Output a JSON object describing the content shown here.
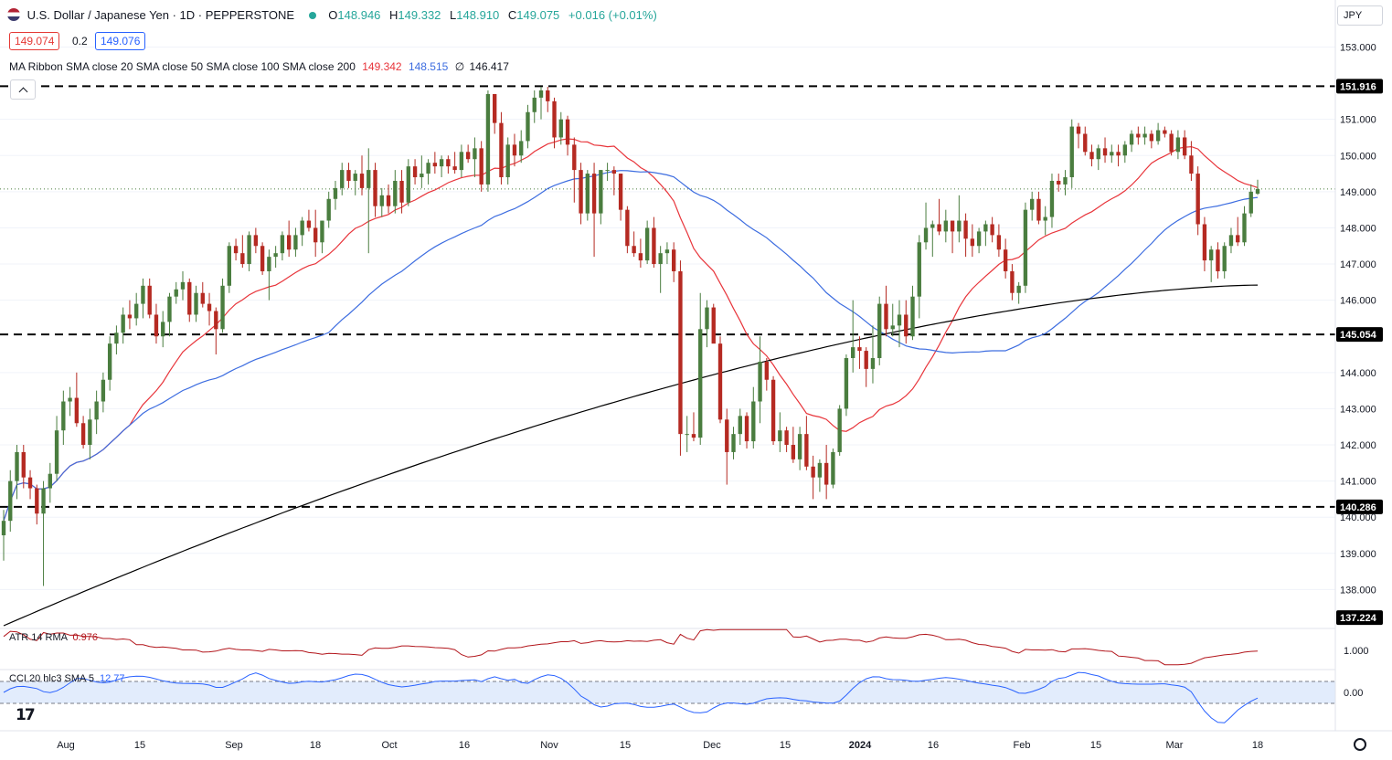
{
  "header": {
    "symbol_title": "U.S. Dollar / Japanese Yen · 1D · PEPPERSTONE",
    "ohlc": {
      "o_label": "O",
      "o": "148.946",
      "h_label": "H",
      "h": "149.332",
      "l_label": "L",
      "l": "148.910",
      "c_label": "C",
      "c": "149.075",
      "change": "+0.016 (+0.01%)"
    },
    "sell_price": "149.074",
    "spread": "0.2",
    "buy_price": "149.076",
    "ma_ribbon": {
      "label": "MA Ribbon SMA close 20 SMA close 50 SMA close 100 SMA close 200",
      "v20": "149.342",
      "v50": "148.515",
      "v100": "∅",
      "v200": "146.417"
    },
    "currency": "JPY"
  },
  "indicators": {
    "atr": {
      "label": "ATR 14 RMA",
      "value": "0.976",
      "axis": "1.000"
    },
    "cci": {
      "label": "CCI 20 hlc3 SMA 5",
      "value": "12.77",
      "axis": "0.00"
    }
  },
  "colors": {
    "up": "#4a7d3f",
    "down": "#b52a22",
    "sma20": "#e8353b",
    "sma50": "#3d6de0",
    "sma200": "#000000",
    "cci": "#2962ff",
    "atr": "#b2151b",
    "cci_band": "#d6e4fb"
  },
  "chart_data": {
    "type": "candlestick",
    "y_ticks": [
      "153.000",
      "151.000",
      "150.000",
      "149.000",
      "148.000",
      "147.000",
      "146.000",
      "144.000",
      "143.000",
      "142.000",
      "141.000",
      "140.000",
      "139.000",
      "138.000"
    ],
    "x_ticks": [
      "Aug",
      "15",
      "Sep",
      "18",
      "Oct",
      "16",
      "Nov",
      "15",
      "Dec",
      "15",
      "2024",
      "16",
      "Feb",
      "15",
      "Mar",
      "18"
    ],
    "ylim": [
      137.0,
      154.3
    ],
    "levels": [
      {
        "value": 151.916,
        "label": "151.916"
      },
      {
        "value": 145.054,
        "label": "145.054"
      },
      {
        "value": 140.286,
        "label": "140.286"
      },
      {
        "value": 137.224,
        "label": "137.224"
      }
    ],
    "candles": [
      [
        139.5,
        140.2,
        138.8,
        139.9
      ],
      [
        139.9,
        141.3,
        139.6,
        141.0
      ],
      [
        141.0,
        142.0,
        140.5,
        141.8
      ],
      [
        141.8,
        142.0,
        140.8,
        141.1
      ],
      [
        141.1,
        141.3,
        140.5,
        140.8
      ],
      [
        140.8,
        140.9,
        139.8,
        140.1
      ],
      [
        140.1,
        141.0,
        138.1,
        140.8
      ],
      [
        140.8,
        141.5,
        140.4,
        141.2
      ],
      [
        141.2,
        142.8,
        141.0,
        142.4
      ],
      [
        142.4,
        143.5,
        142.0,
        143.2
      ],
      [
        143.2,
        143.6,
        142.8,
        143.3
      ],
      [
        143.3,
        144.0,
        142.5,
        142.6
      ],
      [
        142.6,
        142.8,
        141.9,
        142.0
      ],
      [
        142.0,
        143.0,
        141.6,
        142.7
      ],
      [
        142.7,
        143.5,
        142.3,
        143.2
      ],
      [
        143.2,
        144.0,
        142.9,
        143.8
      ],
      [
        143.8,
        145.0,
        143.5,
        144.8
      ],
      [
        144.8,
        145.3,
        144.5,
        145.1
      ],
      [
        145.1,
        145.8,
        144.8,
        145.6
      ],
      [
        145.6,
        146.0,
        145.2,
        145.5
      ],
      [
        145.5,
        146.2,
        145.3,
        145.9
      ],
      [
        145.9,
        146.6,
        145.5,
        146.4
      ],
      [
        146.4,
        146.6,
        145.5,
        145.6
      ],
      [
        145.6,
        145.9,
        144.8,
        145.0
      ],
      [
        145.0,
        145.7,
        144.7,
        145.4
      ],
      [
        145.4,
        146.2,
        145.0,
        146.1
      ],
      [
        146.1,
        146.5,
        145.9,
        146.3
      ],
      [
        146.3,
        146.8,
        146.0,
        146.5
      ],
      [
        146.5,
        146.6,
        145.4,
        145.6
      ],
      [
        145.6,
        146.4,
        145.4,
        146.2
      ],
      [
        146.2,
        146.5,
        145.8,
        145.9
      ],
      [
        145.9,
        146.2,
        145.3,
        145.7
      ],
      [
        145.7,
        145.8,
        144.5,
        145.2
      ],
      [
        145.2,
        146.6,
        145.1,
        146.4
      ],
      [
        146.4,
        147.6,
        146.2,
        147.5
      ],
      [
        147.5,
        147.7,
        147.1,
        147.3
      ],
      [
        147.3,
        147.8,
        146.9,
        147.0
      ],
      [
        147.0,
        147.9,
        146.8,
        147.8
      ],
      [
        147.8,
        148.0,
        147.3,
        147.5
      ],
      [
        147.5,
        147.6,
        146.7,
        146.8
      ],
      [
        146.8,
        147.4,
        146.0,
        147.2
      ],
      [
        147.2,
        147.5,
        146.9,
        147.3
      ],
      [
        147.3,
        147.9,
        147.1,
        147.8
      ],
      [
        147.8,
        148.2,
        147.2,
        147.4
      ],
      [
        147.4,
        148.0,
        147.2,
        147.8
      ],
      [
        147.8,
        148.3,
        147.5,
        148.2
      ],
      [
        148.2,
        148.5,
        147.9,
        148.0
      ],
      [
        148.0,
        148.5,
        147.2,
        147.6
      ],
      [
        147.6,
        148.2,
        147.3,
        148.2
      ],
      [
        148.2,
        149.0,
        148.0,
        148.8
      ],
      [
        148.8,
        149.3,
        148.5,
        149.1
      ],
      [
        149.1,
        149.8,
        148.9,
        149.6
      ],
      [
        149.6,
        149.8,
        149.1,
        149.3
      ],
      [
        149.3,
        149.6,
        148.9,
        149.5
      ],
      [
        149.5,
        150.0,
        148.9,
        149.1
      ],
      [
        149.1,
        150.2,
        147.3,
        149.6
      ],
      [
        149.6,
        149.8,
        148.3,
        148.6
      ],
      [
        148.6,
        149.1,
        148.3,
        148.9
      ],
      [
        148.9,
        149.2,
        148.4,
        148.6
      ],
      [
        148.6,
        149.6,
        148.4,
        149.3
      ],
      [
        149.3,
        149.6,
        148.4,
        148.7
      ],
      [
        148.7,
        149.9,
        148.6,
        149.7
      ],
      [
        149.7,
        149.9,
        149.2,
        149.4
      ],
      [
        149.4,
        150.0,
        149.1,
        149.5
      ],
      [
        149.5,
        149.9,
        149.2,
        149.8
      ],
      [
        149.8,
        150.1,
        149.5,
        149.7
      ],
      [
        149.7,
        150.0,
        149.4,
        149.9
      ],
      [
        149.9,
        150.0,
        149.5,
        149.7
      ],
      [
        149.7,
        150.1,
        149.5,
        149.6
      ],
      [
        149.6,
        150.3,
        149.4,
        150.1
      ],
      [
        150.1,
        150.3,
        149.8,
        149.9
      ],
      [
        149.9,
        150.5,
        149.4,
        150.2
      ],
      [
        150.2,
        150.4,
        149.0,
        149.2
      ],
      [
        149.2,
        151.8,
        149.0,
        151.7
      ],
      [
        151.7,
        151.7,
        150.6,
        150.9
      ],
      [
        150.9,
        151.2,
        149.2,
        149.4
      ],
      [
        149.4,
        150.5,
        149.2,
        150.3
      ],
      [
        150.3,
        150.6,
        149.7,
        150.0
      ],
      [
        150.0,
        150.7,
        149.8,
        150.4
      ],
      [
        150.4,
        151.4,
        150.2,
        151.2
      ],
      [
        151.2,
        151.8,
        150.9,
        151.6
      ],
      [
        151.6,
        151.9,
        151.0,
        151.8
      ],
      [
        151.8,
        151.9,
        151.2,
        151.5
      ],
      [
        151.5,
        151.6,
        150.2,
        150.5
      ],
      [
        150.5,
        151.2,
        150.3,
        151.0
      ],
      [
        151.0,
        151.1,
        150.0,
        150.3
      ],
      [
        150.3,
        150.5,
        148.7,
        149.6
      ],
      [
        149.6,
        149.8,
        148.1,
        148.4
      ],
      [
        148.4,
        149.6,
        148.2,
        149.5
      ],
      [
        149.5,
        149.8,
        147.2,
        148.4
      ],
      [
        148.4,
        149.6,
        148.1,
        149.6
      ],
      [
        149.6,
        149.8,
        149.3,
        149.6
      ],
      [
        149.6,
        149.7,
        148.9,
        149.5
      ],
      [
        149.5,
        149.5,
        148.2,
        148.5
      ],
      [
        148.5,
        148.6,
        147.3,
        147.5
      ],
      [
        147.5,
        147.9,
        147.2,
        147.3
      ],
      [
        147.3,
        147.7,
        146.9,
        147.1
      ],
      [
        147.1,
        148.2,
        147.0,
        148.0
      ],
      [
        148.0,
        148.3,
        146.9,
        147.0
      ],
      [
        147.0,
        147.5,
        146.2,
        147.3
      ],
      [
        147.3,
        147.6,
        147.0,
        147.4
      ],
      [
        147.4,
        147.6,
        146.5,
        146.8
      ],
      [
        146.8,
        147.1,
        141.7,
        142.3
      ],
      [
        142.3,
        142.8,
        141.8,
        142.3
      ],
      [
        142.3,
        142.9,
        142.1,
        142.2
      ],
      [
        142.2,
        146.2,
        142.0,
        145.2
      ],
      [
        145.2,
        146.0,
        144.7,
        145.8
      ],
      [
        145.8,
        145.9,
        144.9,
        144.8
      ],
      [
        144.8,
        145.0,
        142.6,
        142.7
      ],
      [
        142.7,
        143.0,
        140.9,
        141.8
      ],
      [
        141.8,
        142.5,
        141.6,
        142.3
      ],
      [
        142.3,
        143.0,
        142.0,
        142.8
      ],
      [
        142.8,
        142.9,
        141.9,
        142.1
      ],
      [
        142.1,
        143.6,
        141.9,
        143.2
      ],
      [
        143.2,
        145.0,
        142.6,
        144.3
      ],
      [
        144.3,
        144.4,
        143.5,
        143.8
      ],
      [
        143.8,
        143.9,
        142.0,
        142.1
      ],
      [
        142.1,
        142.9,
        141.8,
        142.4
      ],
      [
        142.4,
        142.5,
        141.8,
        142.0
      ],
      [
        142.0,
        142.5,
        141.5,
        141.6
      ],
      [
        141.6,
        142.5,
        141.3,
        142.3
      ],
      [
        142.3,
        142.8,
        141.3,
        141.4
      ],
      [
        141.4,
        141.7,
        140.5,
        141.1
      ],
      [
        141.1,
        141.6,
        140.7,
        141.5
      ],
      [
        141.5,
        142.0,
        140.5,
        140.9
      ],
      [
        140.9,
        141.9,
        140.8,
        141.8
      ],
      [
        141.8,
        143.1,
        141.7,
        143.0
      ],
      [
        143.0,
        144.5,
        142.8,
        144.4
      ],
      [
        144.4,
        146.0,
        144.0,
        144.7
      ],
      [
        144.7,
        145.0,
        144.1,
        144.6
      ],
      [
        144.6,
        144.7,
        143.6,
        144.1
      ],
      [
        144.1,
        145.3,
        143.7,
        144.4
      ],
      [
        144.4,
        146.1,
        144.2,
        145.9
      ],
      [
        145.9,
        146.4,
        145.0,
        145.2
      ],
      [
        145.2,
        145.9,
        145.0,
        145.3
      ],
      [
        145.3,
        146.0,
        144.7,
        145.6
      ],
      [
        145.6,
        146.0,
        144.8,
        145.0
      ],
      [
        145.0,
        146.4,
        144.9,
        146.1
      ],
      [
        146.1,
        147.8,
        145.5,
        147.6
      ],
      [
        147.6,
        148.7,
        147.4,
        148.0
      ],
      [
        148.0,
        148.2,
        147.2,
        148.1
      ],
      [
        148.1,
        148.8,
        147.8,
        147.9
      ],
      [
        147.9,
        148.5,
        147.6,
        148.2
      ],
      [
        148.2,
        148.2,
        147.3,
        147.9
      ],
      [
        147.9,
        148.9,
        147.6,
        148.2
      ],
      [
        148.2,
        148.4,
        147.2,
        147.7
      ],
      [
        147.7,
        148.1,
        147.2,
        147.5
      ],
      [
        147.5,
        148.0,
        147.3,
        147.9
      ],
      [
        147.9,
        148.2,
        147.5,
        148.1
      ],
      [
        148.1,
        148.3,
        147.6,
        147.8
      ],
      [
        147.8,
        148.1,
        147.2,
        147.4
      ],
      [
        147.4,
        147.7,
        146.6,
        146.8
      ],
      [
        146.8,
        147.0,
        146.0,
        146.2
      ],
      [
        146.2,
        146.5,
        145.9,
        146.4
      ],
      [
        146.4,
        148.7,
        146.2,
        148.5
      ],
      [
        148.5,
        149.0,
        148.2,
        148.8
      ],
      [
        148.8,
        149.0,
        148.1,
        148.2
      ],
      [
        148.2,
        148.6,
        147.8,
        148.3
      ],
      [
        148.3,
        149.5,
        148.0,
        149.3
      ],
      [
        149.3,
        149.5,
        149.0,
        149.2
      ],
      [
        149.2,
        149.6,
        148.9,
        149.4
      ],
      [
        149.4,
        151.0,
        149.1,
        150.8
      ],
      [
        150.8,
        150.9,
        150.2,
        150.6
      ],
      [
        150.6,
        150.8,
        150.0,
        150.1
      ],
      [
        150.1,
        150.3,
        149.7,
        149.9
      ],
      [
        149.9,
        150.3,
        149.6,
        150.2
      ],
      [
        150.2,
        150.5,
        149.8,
        150.0
      ],
      [
        150.0,
        150.3,
        149.8,
        150.1
      ],
      [
        150.1,
        150.3,
        149.7,
        150.0
      ],
      [
        150.0,
        150.4,
        149.8,
        150.3
      ],
      [
        150.3,
        150.7,
        150.1,
        150.6
      ],
      [
        150.6,
        150.8,
        150.3,
        150.5
      ],
      [
        150.5,
        150.8,
        150.3,
        150.6
      ],
      [
        150.6,
        150.7,
        150.2,
        150.4
      ],
      [
        150.4,
        150.9,
        150.3,
        150.7
      ],
      [
        150.7,
        150.8,
        150.5,
        150.6
      ],
      [
        150.6,
        150.7,
        150.0,
        150.1
      ],
      [
        150.1,
        150.7,
        149.9,
        150.5
      ],
      [
        150.5,
        150.7,
        149.9,
        150.0
      ],
      [
        150.0,
        150.4,
        149.3,
        149.5
      ],
      [
        149.5,
        149.7,
        147.8,
        148.1
      ],
      [
        148.1,
        148.3,
        146.8,
        147.1
      ],
      [
        147.1,
        147.5,
        146.5,
        147.4
      ],
      [
        147.4,
        147.6,
        146.6,
        146.8
      ],
      [
        146.8,
        147.6,
        146.6,
        147.5
      ],
      [
        147.5,
        148.0,
        147.3,
        147.8
      ],
      [
        147.8,
        148.3,
        147.5,
        147.6
      ],
      [
        147.6,
        148.6,
        147.5,
        148.4
      ],
      [
        148.4,
        149.2,
        148.3,
        149.0
      ],
      [
        148.946,
        149.332,
        148.91,
        149.075
      ]
    ]
  }
}
